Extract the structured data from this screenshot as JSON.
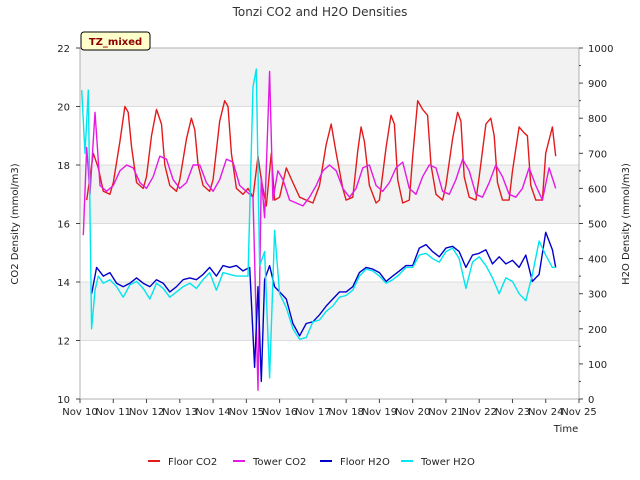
{
  "chart_data": {
    "type": "line",
    "title": "Tonzi CO2 and H2O Densities",
    "badge": "TZ_mixed",
    "xlabel": "Time",
    "ylabel_left": "CO2 Density (mmol/m3)",
    "ylabel_right": "H2O Density (mmol/m3)",
    "xlim": [
      10,
      25
    ],
    "ylim_left": [
      10,
      22
    ],
    "ylim_right": [
      0,
      1000
    ],
    "x_ticks": [
      {
        "v": 10,
        "label": "Nov 10"
      },
      {
        "v": 11,
        "label": "Nov 11"
      },
      {
        "v": 12,
        "label": "Nov 12"
      },
      {
        "v": 13,
        "label": "Nov 13"
      },
      {
        "v": 14,
        "label": "Nov 14"
      },
      {
        "v": 15,
        "label": "Nov 15"
      },
      {
        "v": 16,
        "label": "Nov 16"
      },
      {
        "v": 17,
        "label": "Nov 17"
      },
      {
        "v": 18,
        "label": "Nov 18"
      },
      {
        "v": 19,
        "label": "Nov 19"
      },
      {
        "v": 20,
        "label": "Nov 20"
      },
      {
        "v": 21,
        "label": "Nov 21"
      },
      {
        "v": 22,
        "label": "Nov 22"
      },
      {
        "v": 23,
        "label": "Nov 23"
      },
      {
        "v": 24,
        "label": "Nov 24"
      },
      {
        "v": 25,
        "label": "Nov 25"
      }
    ],
    "y_ticks_left": [
      10,
      12,
      14,
      16,
      18,
      20,
      22
    ],
    "y_ticks_right": [
      0,
      100,
      200,
      300,
      400,
      500,
      600,
      700,
      800,
      900,
      1000
    ],
    "grid": true,
    "legend_position": "bottom",
    "series": [
      {
        "name": "Floor CO2",
        "axis": "left",
        "color": "#e31a1c",
        "x": [
          10.2,
          10.4,
          10.55,
          10.7,
          10.9,
          11.0,
          11.2,
          11.35,
          11.45,
          11.55,
          11.7,
          11.9,
          12.0,
          12.15,
          12.3,
          12.45,
          12.55,
          12.7,
          12.9,
          13.0,
          13.2,
          13.35,
          13.45,
          13.55,
          13.7,
          13.9,
          14.0,
          14.2,
          14.35,
          14.45,
          14.55,
          14.7,
          14.9,
          15.05,
          15.2,
          15.35,
          15.45,
          15.6,
          15.75,
          15.85,
          16.0,
          16.2,
          16.4,
          16.6,
          16.8,
          17.0,
          17.2,
          17.4,
          17.55,
          17.7,
          17.9,
          18.0,
          18.2,
          18.35,
          18.45,
          18.55,
          18.7,
          18.9,
          19.0,
          19.2,
          19.35,
          19.45,
          19.55,
          19.7,
          19.9,
          20.0,
          20.15,
          20.3,
          20.45,
          20.55,
          20.7,
          20.9,
          21.0,
          21.2,
          21.35,
          21.45,
          21.55,
          21.7,
          21.9,
          22.0,
          22.2,
          22.35,
          22.45,
          22.55,
          22.7,
          22.9,
          23.0,
          23.2,
          23.35,
          23.45,
          23.55,
          23.7,
          23.9,
          24.0,
          24.2,
          24.3
        ],
        "y": [
          16.8,
          18.4,
          17.9,
          17.1,
          17.0,
          17.4,
          18.8,
          20.0,
          19.8,
          18.6,
          17.4,
          17.2,
          17.6,
          19.0,
          19.9,
          19.4,
          18.0,
          17.3,
          17.1,
          17.5,
          18.9,
          19.6,
          19.2,
          18.0,
          17.3,
          17.1,
          17.5,
          19.5,
          20.2,
          20.0,
          18.4,
          17.2,
          17.0,
          17.2,
          16.9,
          18.3,
          17.5,
          16.6,
          18.4,
          16.8,
          16.9,
          17.9,
          17.4,
          16.9,
          16.8,
          16.7,
          17.3,
          18.7,
          19.4,
          18.4,
          17.2,
          16.8,
          16.9,
          18.5,
          19.3,
          18.8,
          17.3,
          16.7,
          16.8,
          18.6,
          19.7,
          19.4,
          17.5,
          16.7,
          16.8,
          18.3,
          20.2,
          19.9,
          19.7,
          18.0,
          17.0,
          16.8,
          17.3,
          18.9,
          19.8,
          19.5,
          17.6,
          16.9,
          16.8,
          17.6,
          19.4,
          19.6,
          19.0,
          17.4,
          16.8,
          16.8,
          17.8,
          19.3,
          19.1,
          19.0,
          17.3,
          16.8,
          16.8,
          18.4,
          19.3,
          18.3
        ]
      },
      {
        "name": "Tower CO2",
        "axis": "left",
        "color": "#e41ae4",
        "x": [
          10.1,
          10.2,
          10.3,
          10.45,
          10.6,
          10.8,
          11.0,
          11.2,
          11.4,
          11.6,
          11.8,
          12.0,
          12.2,
          12.4,
          12.6,
          12.8,
          13.0,
          13.2,
          13.4,
          13.6,
          13.8,
          14.0,
          14.2,
          14.4,
          14.6,
          14.8,
          15.0,
          15.2,
          15.35,
          15.45,
          15.55,
          15.7,
          15.8,
          15.95,
          16.1,
          16.3,
          16.5,
          16.7,
          16.9,
          17.1,
          17.3,
          17.5,
          17.7,
          17.9,
          18.1,
          18.3,
          18.5,
          18.7,
          18.9,
          19.1,
          19.3,
          19.5,
          19.7,
          19.9,
          20.1,
          20.3,
          20.5,
          20.7,
          20.9,
          21.1,
          21.3,
          21.5,
          21.7,
          21.9,
          22.1,
          22.3,
          22.5,
          22.7,
          22.9,
          23.1,
          23.3,
          23.5,
          23.7,
          23.9,
          24.1,
          24.3
        ],
        "y": [
          15.6,
          18.6,
          17.0,
          19.8,
          17.3,
          17.1,
          17.3,
          17.8,
          18.0,
          17.9,
          17.4,
          17.2,
          17.6,
          18.3,
          18.2,
          17.5,
          17.2,
          17.4,
          18.0,
          18.0,
          17.4,
          17.1,
          17.5,
          18.2,
          18.1,
          17.3,
          17.1,
          16.9,
          10.3,
          17.6,
          16.2,
          21.2,
          16.8,
          17.8,
          17.5,
          16.8,
          16.7,
          16.6,
          16.9,
          17.3,
          17.8,
          18.0,
          17.8,
          17.2,
          16.9,
          17.2,
          17.9,
          18.0,
          17.3,
          17.1,
          17.4,
          17.9,
          18.1,
          17.2,
          17.0,
          17.6,
          18.0,
          17.9,
          17.1,
          17.0,
          17.5,
          18.2,
          17.8,
          17.0,
          16.9,
          17.4,
          18.0,
          17.6,
          17.0,
          16.9,
          17.2,
          17.9,
          17.3,
          16.8,
          17.9,
          17.2
        ]
      },
      {
        "name": "Floor H2O",
        "axis": "right",
        "color": "#0000cc",
        "x": [
          10.35,
          10.5,
          10.7,
          10.9,
          11.1,
          11.3,
          11.5,
          11.7,
          11.9,
          12.1,
          12.3,
          12.5,
          12.7,
          12.9,
          13.1,
          13.3,
          13.5,
          13.7,
          13.9,
          14.1,
          14.3,
          14.5,
          14.7,
          14.9,
          15.1,
          15.25,
          15.35,
          15.45,
          15.55,
          15.7,
          15.85,
          16.0,
          16.2,
          16.4,
          16.6,
          16.8,
          17.0,
          17.2,
          17.4,
          17.6,
          17.8,
          18.0,
          18.2,
          18.4,
          18.6,
          18.8,
          19.0,
          19.2,
          19.4,
          19.6,
          19.8,
          20.0,
          20.2,
          20.4,
          20.6,
          20.8,
          21.0,
          21.2,
          21.4,
          21.6,
          21.8,
          22.0,
          22.2,
          22.4,
          22.6,
          22.8,
          23.0,
          23.2,
          23.4,
          23.6,
          23.8,
          24.0,
          24.2,
          24.3
        ],
        "y": [
          300,
          375,
          350,
          360,
          330,
          320,
          330,
          345,
          330,
          320,
          340,
          330,
          305,
          320,
          340,
          345,
          340,
          355,
          375,
          350,
          380,
          375,
          380,
          365,
          375,
          90,
          320,
          50,
          340,
          380,
          320,
          305,
          285,
          215,
          180,
          215,
          220,
          240,
          265,
          285,
          305,
          305,
          320,
          360,
          375,
          370,
          360,
          335,
          350,
          365,
          380,
          380,
          430,
          440,
          420,
          405,
          430,
          435,
          420,
          375,
          410,
          415,
          425,
          385,
          405,
          385,
          395,
          375,
          410,
          335,
          355,
          475,
          425,
          375
        ]
      },
      {
        "name": "Tower H2O",
        "axis": "right",
        "color": "#00e5ee",
        "x": [
          10.05,
          10.15,
          10.25,
          10.35,
          10.45,
          10.55,
          10.7,
          10.9,
          11.1,
          11.3,
          11.5,
          11.7,
          11.9,
          12.1,
          12.3,
          12.5,
          12.7,
          12.9,
          13.1,
          13.3,
          13.5,
          13.7,
          13.9,
          14.1,
          14.3,
          14.5,
          14.7,
          14.9,
          15.05,
          15.2,
          15.3,
          15.4,
          15.55,
          15.7,
          15.85,
          16.0,
          16.2,
          16.4,
          16.6,
          16.8,
          17.0,
          17.2,
          17.4,
          17.6,
          17.8,
          18.0,
          18.2,
          18.4,
          18.6,
          18.8,
          19.0,
          19.2,
          19.4,
          19.6,
          19.8,
          20.0,
          20.2,
          20.4,
          20.6,
          20.8,
          21.0,
          21.2,
          21.4,
          21.6,
          21.8,
          22.0,
          22.2,
          22.4,
          22.6,
          22.8,
          23.0,
          23.2,
          23.4,
          23.6,
          23.8,
          24.0,
          24.2,
          24.3
        ],
        "y": [
          880,
          700,
          880,
          200,
          310,
          350,
          330,
          340,
          320,
          290,
          325,
          335,
          315,
          285,
          330,
          315,
          290,
          305,
          320,
          330,
          315,
          340,
          360,
          310,
          360,
          355,
          350,
          350,
          350,
          890,
          940,
          380,
          420,
          60,
          480,
          300,
          260,
          200,
          170,
          175,
          220,
          225,
          250,
          265,
          290,
          295,
          310,
          350,
          370,
          365,
          350,
          330,
          340,
          355,
          375,
          375,
          410,
          415,
          400,
          390,
          420,
          430,
          400,
          315,
          390,
          405,
          380,
          345,
          300,
          345,
          335,
          300,
          280,
          355,
          450,
          410,
          375,
          375
        ]
      }
    ]
  }
}
